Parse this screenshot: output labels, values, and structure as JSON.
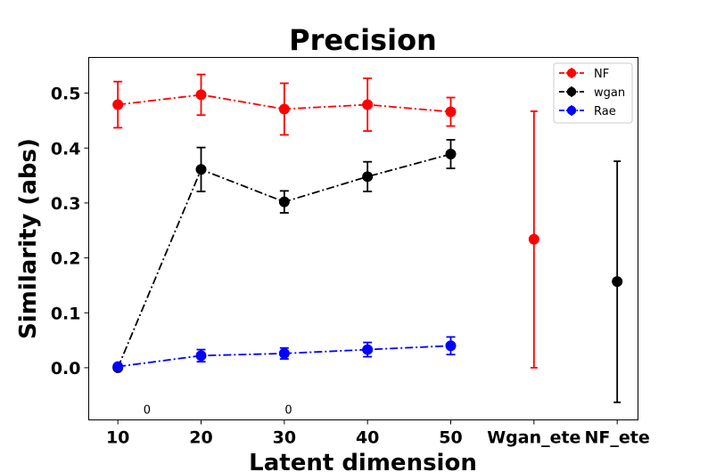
{
  "chart_data": {
    "type": "line",
    "title": "Precision",
    "xlabel": "Latent dimension",
    "ylabel": "Similarity (abs)",
    "categories": [
      "10",
      "20",
      "30",
      "40",
      "50",
      "Wgan_ete",
      "NF_ete"
    ],
    "x_positions": [
      10,
      20,
      30,
      40,
      50,
      60,
      70
    ],
    "xlim": [
      6.5,
      72.5
    ],
    "ylim": [
      -0.095,
      0.565
    ],
    "yticks": [
      0.0,
      0.1,
      0.2,
      0.3,
      0.4,
      0.5
    ],
    "ytick_labels": [
      "0.0",
      "0.1",
      "0.2",
      "0.3",
      "0.4",
      "0.5"
    ],
    "grid": false,
    "legend_position": "top-right",
    "series": [
      {
        "name": "NF",
        "color": "#ff0000",
        "linestyle": "dashdot",
        "x": [
          10,
          20,
          30,
          40,
          50
        ],
        "y": [
          0.479,
          0.497,
          0.471,
          0.479,
          0.466
        ],
        "err": [
          0.042,
          0.037,
          0.047,
          0.048,
          0.026
        ]
      },
      {
        "name": "wgan",
        "color": "#000000",
        "linestyle": "dashdot",
        "x": [
          10,
          20,
          30,
          40,
          50
        ],
        "y": [
          0.0,
          0.361,
          0.302,
          0.348,
          0.389
        ],
        "err": [
          0.0,
          0.04,
          0.02,
          0.027,
          0.026
        ]
      },
      {
        "name": "Rae",
        "color": "#0000ff",
        "linestyle": "dashdot",
        "x": [
          10,
          20,
          30,
          40,
          50
        ],
        "y": [
          0.002,
          0.022,
          0.026,
          0.033,
          0.04
        ],
        "err": [
          0.0,
          0.011,
          0.01,
          0.013,
          0.016
        ]
      }
    ],
    "standalone_points": [
      {
        "color": "#ff0000",
        "x": 60,
        "y": 0.234,
        "err_low": 0.0,
        "err_high": 0.467
      },
      {
        "color": "#000000",
        "x": 70,
        "y": 0.157,
        "err_low": -0.063,
        "err_high": 0.376
      }
    ],
    "annotations": [
      {
        "text": "0",
        "x": 13.5,
        "y": -0.084
      },
      {
        "text": "0",
        "x": 30.5,
        "y": -0.084
      }
    ]
  }
}
